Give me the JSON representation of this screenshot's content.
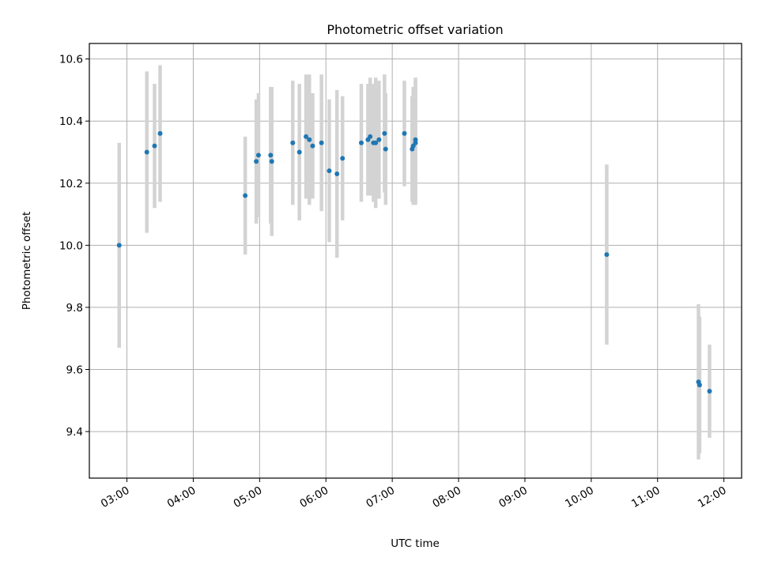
{
  "chart_data": {
    "type": "scatter",
    "title": "Photometric offset variation",
    "xlabel": "UTC time",
    "ylabel": "Photometric offset",
    "x_tick_labels": [
      "03:00",
      "04:00",
      "05:00",
      "06:00",
      "07:00",
      "08:00",
      "09:00",
      "10:00",
      "11:00",
      "12:00"
    ],
    "y_tick_labels": [
      "9.4",
      "9.6",
      "9.8",
      "10.0",
      "10.2",
      "10.4",
      "10.6"
    ],
    "xlim": [
      "02:26",
      "12:16"
    ],
    "ylim": [
      9.25,
      10.65
    ],
    "grid": true,
    "colors": {
      "points": "#1f77b4",
      "errorbars": "#d3d3d3",
      "grid": "#b0b0b0"
    },
    "points": [
      {
        "t": "02:53",
        "y": 10.0,
        "err": 0.33
      },
      {
        "t": "03:18",
        "y": 10.3,
        "err": 0.26
      },
      {
        "t": "03:25",
        "y": 10.32,
        "err": 0.2
      },
      {
        "t": "03:30",
        "y": 10.36,
        "err": 0.22
      },
      {
        "t": "04:47",
        "y": 10.16,
        "err": 0.19
      },
      {
        "t": "04:57",
        "y": 10.27,
        "err": 0.2
      },
      {
        "t": "04:59",
        "y": 10.29,
        "err": 0.2
      },
      {
        "t": "05:10",
        "y": 10.29,
        "err": 0.22
      },
      {
        "t": "05:11",
        "y": 10.27,
        "err": 0.24
      },
      {
        "t": "05:30",
        "y": 10.33,
        "err": 0.2
      },
      {
        "t": "05:36",
        "y": 10.3,
        "err": 0.22
      },
      {
        "t": "05:42",
        "y": 10.35,
        "err": 0.2
      },
      {
        "t": "05:45",
        "y": 10.34,
        "err": 0.21
      },
      {
        "t": "05:48",
        "y": 10.32,
        "err": 0.17
      },
      {
        "t": "05:56",
        "y": 10.33,
        "err": 0.22
      },
      {
        "t": "06:03",
        "y": 10.24,
        "err": 0.23
      },
      {
        "t": "06:10",
        "y": 10.23,
        "err": 0.27
      },
      {
        "t": "06:15",
        "y": 10.28,
        "err": 0.2
      },
      {
        "t": "06:32",
        "y": 10.33,
        "err": 0.19
      },
      {
        "t": "06:38",
        "y": 10.34,
        "err": 0.18
      },
      {
        "t": "06:40",
        "y": 10.35,
        "err": 0.19
      },
      {
        "t": "06:43",
        "y": 10.33,
        "err": 0.19
      },
      {
        "t": "06:45",
        "y": 10.33,
        "err": 0.21
      },
      {
        "t": "06:48",
        "y": 10.34,
        "err": 0.19
      },
      {
        "t": "06:53",
        "y": 10.36,
        "err": 0.19
      },
      {
        "t": "06:54",
        "y": 10.31,
        "err": 0.18
      },
      {
        "t": "07:11",
        "y": 10.36,
        "err": 0.17
      },
      {
        "t": "07:18",
        "y": 10.31,
        "err": 0.17
      },
      {
        "t": "07:19",
        "y": 10.32,
        "err": 0.19
      },
      {
        "t": "07:21",
        "y": 10.34,
        "err": 0.2
      },
      {
        "t": "07:21",
        "y": 10.33,
        "err": 0.2
      },
      {
        "t": "10:14",
        "y": 9.97,
        "err": 0.29
      },
      {
        "t": "11:37",
        "y": 9.56,
        "err": 0.25
      },
      {
        "t": "11:38",
        "y": 9.55,
        "err": 0.22
      },
      {
        "t": "11:47",
        "y": 9.53,
        "err": 0.15
      }
    ]
  }
}
